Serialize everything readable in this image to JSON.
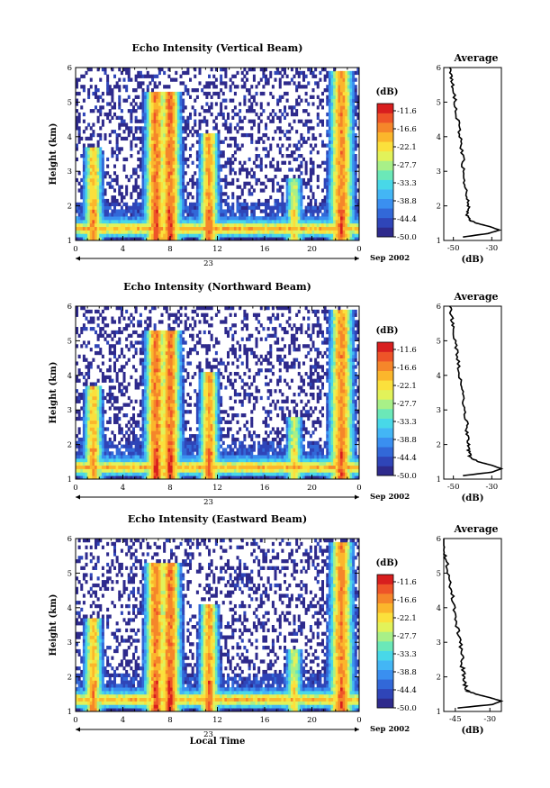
{
  "palette": [
    "#2e2a8c",
    "#2f45b8",
    "#3268d8",
    "#3a8ff0",
    "#43b6f5",
    "#48d8e8",
    "#6be8b8",
    "#a8f088",
    "#e2f25a",
    "#fbe03c",
    "#fbb62c",
    "#f5862a",
    "#ee5428",
    "#d81e1e"
  ],
  "footer": {
    "xlabel": "Local Time"
  },
  "panels": [
    {
      "title": "Echo Intensity (Vertical Beam)",
      "ylabel": "Height (km)",
      "date_label": "Sep 2002",
      "day_label": "23",
      "colorbar_unit": "(dB)",
      "colorbar_ticks": [
        "-11.6",
        "-16.6",
        "-22.1",
        "-27.7",
        "-33.3",
        "-38.8",
        "-44.4",
        "-50.0"
      ],
      "avg_title": "Average",
      "avg_xlabel": "(dB)",
      "avg_xticks": [
        "-50",
        "-30"
      ],
      "avg_xlim": [
        -55,
        -25
      ],
      "avg_yticks": [
        "1",
        "2",
        "3",
        "4",
        "5",
        "6"
      ]
    },
    {
      "title": "Echo Intensity (Northward Beam)",
      "ylabel": "Height (km)",
      "date_label": "Sep 2002",
      "day_label": "23",
      "colorbar_unit": "(dB)",
      "colorbar_ticks": [
        "-11.6",
        "-16.6",
        "-22.1",
        "-27.7",
        "-33.3",
        "-38.8",
        "-44.4",
        "-50.0"
      ],
      "avg_title": "Average",
      "avg_xlabel": "(dB)",
      "avg_xticks": [
        "-50",
        "-30"
      ],
      "avg_xlim": [
        -55,
        -25
      ],
      "avg_yticks": [
        "1",
        "2",
        "3",
        "4",
        "5",
        "6"
      ]
    },
    {
      "title": "Echo Intensity (Eastward Beam)",
      "ylabel": "Height (km)",
      "date_label": "Sep 2002",
      "day_label": "23",
      "colorbar_unit": "(dB)",
      "colorbar_ticks": [
        "-11.6",
        "-16.6",
        "-22.1",
        "-27.7",
        "-33.3",
        "-38.8",
        "-44.4",
        "-50.0"
      ],
      "avg_title": "Average",
      "avg_xlabel": "(dB)",
      "avg_xticks": [
        "-45",
        "-30"
      ],
      "avg_xlim": [
        -50,
        -25
      ],
      "avg_yticks": [
        "1",
        "2",
        "3",
        "4",
        "5",
        "6"
      ]
    }
  ],
  "chart_data": {
    "type": "heatmap",
    "x_ticks": [
      "0",
      "4",
      "8",
      "12",
      "16",
      "20",
      "0"
    ],
    "xlim_hours": [
      0,
      24
    ],
    "y_ticks": [
      "1",
      "2",
      "3",
      "4",
      "5",
      "6"
    ],
    "ylim_km": [
      1,
      6
    ],
    "color_scale_db": [
      -50.0,
      -44.4,
      -38.8,
      -33.3,
      -27.7,
      -22.1,
      -16.6,
      -11.6
    ],
    "layer_km": [
      1.2,
      1.7
    ],
    "plumes": [
      {
        "center_hour": 1.5,
        "top_km": 3.7,
        "peak_db": -16
      },
      {
        "center_hour": 6.8,
        "top_km": 5.3,
        "peak_db": -12
      },
      {
        "center_hour": 8.0,
        "top_km": 5.3,
        "peak_db": -11.6
      },
      {
        "center_hour": 11.3,
        "top_km": 4.1,
        "peak_db": -14
      },
      {
        "center_hour": 18.5,
        "top_km": 2.8,
        "peak_db": -22
      },
      {
        "center_hour": 22.5,
        "top_km": 5.9,
        "peak_db": -13
      }
    ],
    "average_profiles": [
      {
        "beam": "Vertical",
        "height_km": [
          1.1,
          1.2,
          1.3,
          1.4,
          1.5,
          1.6,
          1.8,
          2.0,
          2.3,
          2.6,
          3.0,
          3.4,
          3.8,
          4.2,
          4.6,
          5.0,
          5.4,
          5.7,
          6.0
        ],
        "db": [
          -45,
          -32,
          -26,
          -31,
          -38,
          -42,
          -43,
          -42,
          -43,
          -44,
          -45,
          -45,
          -46,
          -47,
          -48,
          -49,
          -50,
          -51,
          -52
        ]
      },
      {
        "beam": "Northward",
        "height_km": [
          1.1,
          1.2,
          1.3,
          1.4,
          1.5,
          1.6,
          1.8,
          2.0,
          2.3,
          2.6,
          3.0,
          3.4,
          3.8,
          4.2,
          4.6,
          5.0,
          5.4,
          5.7,
          6.0
        ],
        "db": [
          -45,
          -30,
          -25,
          -30,
          -37,
          -41,
          -42,
          -42,
          -43,
          -43,
          -44,
          -45,
          -46,
          -47,
          -48,
          -49,
          -50,
          -51,
          -52
        ]
      },
      {
        "beam": "Eastward",
        "height_km": [
          1.1,
          1.2,
          1.3,
          1.4,
          1.5,
          1.6,
          1.8,
          2.0,
          2.3,
          2.6,
          3.0,
          3.4,
          3.8,
          4.2,
          4.6,
          5.0,
          5.4,
          5.7,
          6.0
        ],
        "db": [
          -44,
          -29,
          -25,
          -30,
          -36,
          -40,
          -41,
          -41,
          -42,
          -42,
          -43,
          -44,
          -45,
          -46,
          -47,
          -48,
          -49,
          -50,
          -51
        ]
      }
    ]
  }
}
